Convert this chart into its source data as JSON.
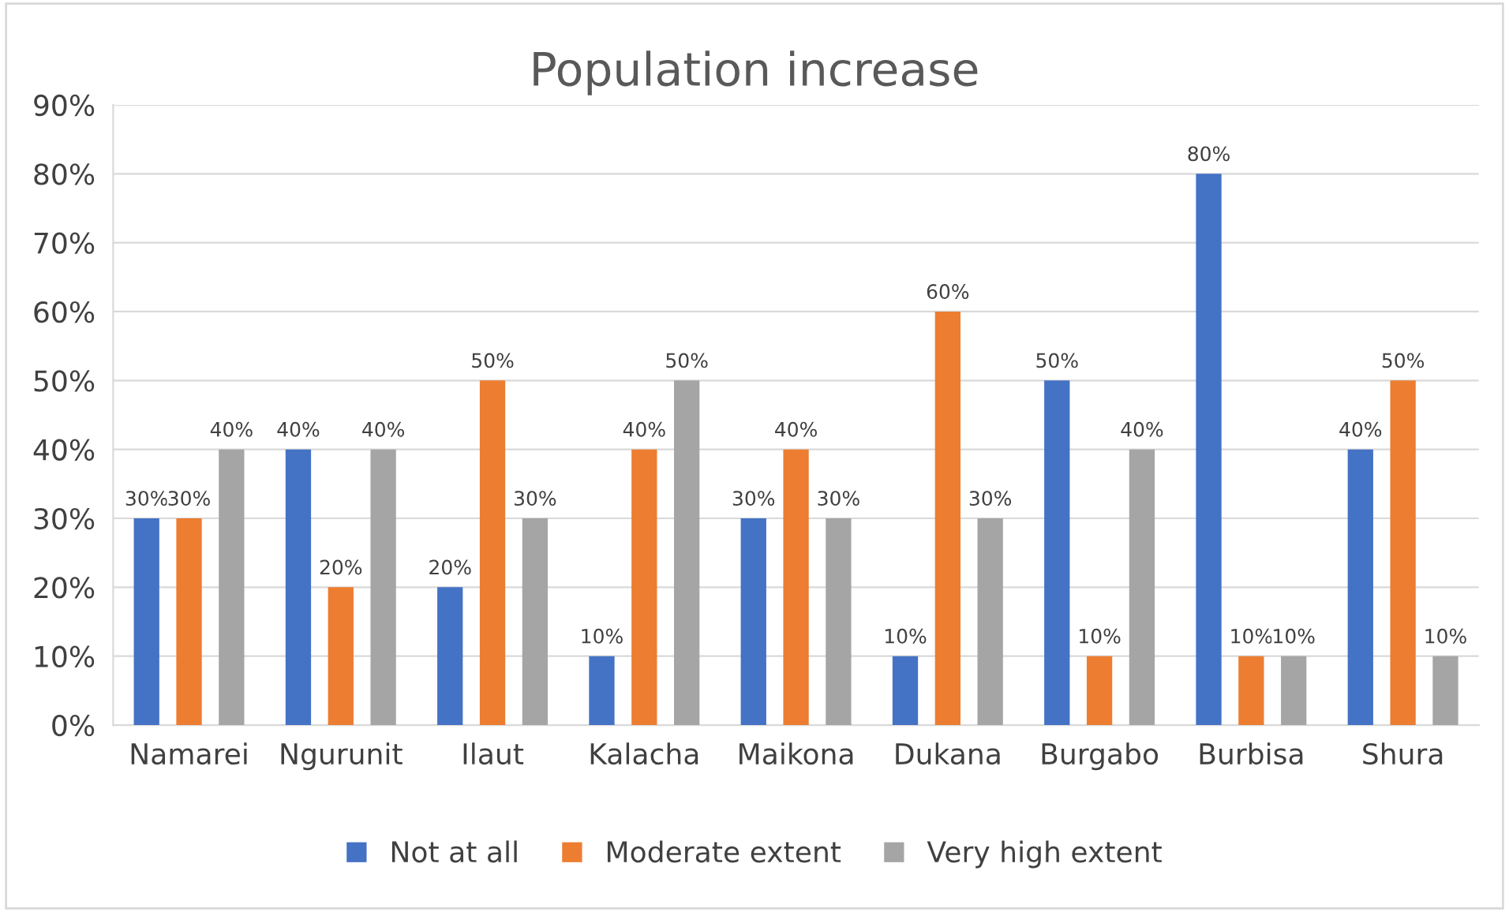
{
  "chart_data": {
    "type": "bar",
    "title": "Population increase",
    "categories": [
      "Namarei",
      "Ngurunit",
      "Ilaut",
      "Kalacha",
      "Maikona",
      "Dukana",
      "Burgabo",
      "Burbisa",
      "Shura"
    ],
    "series": [
      {
        "name": "Not at all",
        "color": "#4472c4",
        "values": [
          30,
          40,
          20,
          10,
          30,
          10,
          50,
          80,
          40
        ],
        "value_labels": [
          "30%",
          "40%",
          "20%",
          "10%",
          "30%",
          "10%",
          "50%",
          "80%",
          "40%"
        ]
      },
      {
        "name": "Moderate extent",
        "color": "#ed7d31",
        "values": [
          30,
          20,
          50,
          40,
          40,
          60,
          10,
          10,
          50
        ],
        "value_labels": [
          "30%",
          "20%",
          "50%",
          "40%",
          "40%",
          "60%",
          "10%",
          "10%",
          "50%"
        ]
      },
      {
        "name": "Very high extent",
        "color": "#a5a5a5",
        "values": [
          40,
          40,
          30,
          50,
          30,
          30,
          40,
          10,
          10
        ],
        "value_labels": [
          "40%",
          "40%",
          "30%",
          "50%",
          "30%",
          "30%",
          "40%",
          "10%",
          "10%"
        ]
      }
    ],
    "ylim": [
      0,
      90
    ],
    "yticks": [
      {
        "value": 0,
        "label": "0%"
      },
      {
        "value": 10,
        "label": "10%"
      },
      {
        "value": 20,
        "label": "20%"
      },
      {
        "value": 30,
        "label": "30%"
      },
      {
        "value": 40,
        "label": "40%"
      },
      {
        "value": 50,
        "label": "50%"
      },
      {
        "value": 60,
        "label": "60%"
      },
      {
        "value": 70,
        "label": "70%"
      },
      {
        "value": 80,
        "label": "80%"
      },
      {
        "value": 90,
        "label": "90%"
      }
    ],
    "grid": "y",
    "legend": "bottom"
  }
}
